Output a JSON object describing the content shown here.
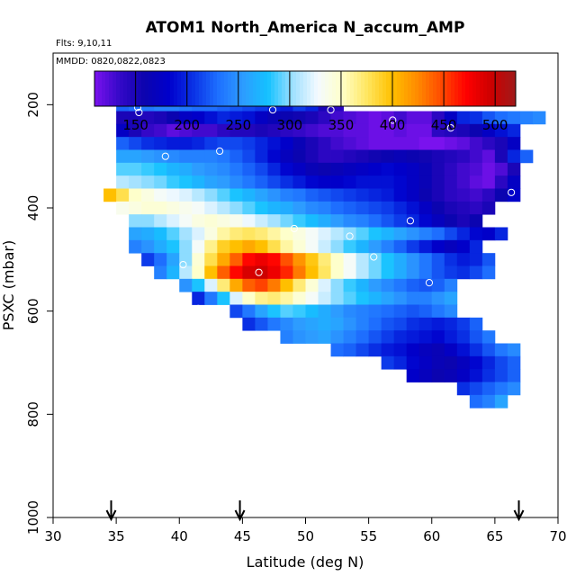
{
  "chart_data": {
    "type": "heatmap",
    "title": "ATOM1 North_America N_accum_AMP",
    "annotations": [
      "Flts: 9,10,11",
      "MMDD: 0820,0822,0823"
    ],
    "xlabel": "Latitude (deg N)",
    "ylabel": "PSXC (mbar)",
    "xlim": [
      30,
      70
    ],
    "ylim": [
      1000,
      100
    ],
    "y_reversed": true,
    "xticks": [
      30,
      35,
      40,
      45,
      50,
      55,
      60,
      65,
      70
    ],
    "yticks": [
      200,
      400,
      600,
      800,
      1000
    ],
    "grid": false,
    "legend": "colorbar top",
    "colorbar": {
      "min": 110,
      "max": 520,
      "ticks": [
        150,
        200,
        250,
        300,
        350,
        400,
        450,
        500
      ],
      "colors": [
        "#7a12ee",
        "#3508c8",
        "#0c04ae",
        "#0000cc",
        "#0a32e6",
        "#1e70ff",
        "#2d9cff",
        "#14c2ff",
        "#9ee0ff",
        "#f4faff",
        "#ffffc8",
        "#ffe660",
        "#ffc000",
        "#ff8c00",
        "#ff4a00",
        "#ff0000",
        "#cc0000",
        "#a01a1a"
      ]
    },
    "cell": {
      "dlat": 1,
      "dp": 25
    },
    "rows": [
      {
        "p": 200,
        "lat0": 35,
        "values": [
          225,
          230,
          235,
          240,
          240,
          235,
          230,
          230,
          225,
          220,
          215,
          210,
          200,
          195,
          210,
          200,
          150,
          140
        ]
      },
      {
        "p": 225,
        "lat0": 35,
        "values": [
          150,
          150,
          145,
          150,
          160,
          175,
          180,
          190,
          200,
          195,
          190,
          175,
          165,
          160,
          155,
          150,
          140,
          130,
          125,
          120,
          115,
          120,
          130,
          120,
          120,
          140,
          175,
          200,
          205,
          220,
          230,
          235,
          240,
          245
        ]
      },
      {
        "p": 250,
        "lat0": 35,
        "values": [
          175,
          150,
          135,
          130,
          120,
          125,
          130,
          130,
          140,
          145,
          145,
          150,
          145,
          140,
          135,
          130,
          125,
          125,
          120,
          120,
          115,
          115,
          120,
          115,
          115,
          140,
          145,
          150,
          160,
          175,
          190,
          200
        ]
      },
      {
        "p": 275,
        "lat0": 35,
        "values": [
          225,
          215,
          205,
          200,
          195,
          195,
          200,
          210,
          215,
          215,
          210,
          200,
          190,
          180,
          165,
          150,
          140,
          130,
          125,
          120,
          115,
          115,
          115,
          115,
          110,
          110,
          115,
          120,
          130,
          140,
          150,
          175
        ]
      },
      {
        "p": 300,
        "lat0": 35,
        "values": [
          260,
          260,
          255,
          250,
          245,
          240,
          240,
          240,
          235,
          225,
          215,
          200,
          185,
          170,
          160,
          150,
          140,
          140,
          145,
          150,
          155,
          160,
          165,
          160,
          155,
          150,
          145,
          140,
          130,
          120,
          150,
          200,
          225
        ]
      },
      {
        "p": 325,
        "lat0": 35,
        "values": [
          290,
          290,
          285,
          280,
          270,
          265,
          255,
          250,
          245,
          235,
          225,
          215,
          200,
          185,
          175,
          165,
          160,
          165,
          170,
          175,
          180,
          185,
          180,
          175,
          165,
          150,
          140,
          130,
          125,
          115,
          125,
          150
        ]
      },
      {
        "p": 350,
        "lat0": 35,
        "values": [
          310,
          305,
          300,
          295,
          285,
          280,
          270,
          260,
          255,
          245,
          235,
          225,
          215,
          205,
          195,
          185,
          180,
          180,
          185,
          190,
          190,
          190,
          185,
          175,
          165,
          150,
          140,
          130,
          120,
          115,
          140,
          175
        ]
      },
      {
        "p": 375,
        "lat0": 34,
        "values": [
          400,
          380,
          350,
          340,
          330,
          325,
          320,
          310,
          300,
          290,
          280,
          270,
          260,
          250,
          240,
          235,
          225,
          220,
          215,
          210,
          205,
          200,
          195,
          185,
          175,
          160,
          150,
          140,
          135,
          130,
          140,
          160,
          180
        ]
      },
      {
        "p": 400,
        "lat0": 35,
        "values": [
          335,
          340,
          345,
          345,
          340,
          335,
          330,
          320,
          310,
          300,
          290,
          280,
          270,
          265,
          255,
          245,
          240,
          230,
          225,
          220,
          215,
          210,
          200,
          190,
          175,
          160,
          150,
          145,
          140,
          150
        ]
      },
      {
        "p": 425,
        "lat0": 36,
        "values": [
          300,
          300,
          310,
          320,
          330,
          340,
          345,
          340,
          335,
          325,
          315,
          305,
          295,
          285,
          275,
          265,
          255,
          245,
          240,
          230,
          220,
          210,
          200,
          185,
          170,
          160,
          150,
          160
        ]
      },
      {
        "p": 450,
        "lat0": 36,
        "values": [
          260,
          265,
          275,
          290,
          305,
          320,
          340,
          360,
          370,
          375,
          370,
          360,
          350,
          340,
          330,
          320,
          310,
          300,
          290,
          280,
          270,
          260,
          250,
          240,
          230,
          215,
          200,
          185,
          180,
          200
        ]
      },
      {
        "p": 475,
        "lat0": 36,
        "values": [
          240,
          250,
          265,
          280,
          300,
          330,
          365,
          390,
          400,
          410,
          400,
          380,
          360,
          345,
          330,
          315,
          300,
          285,
          270,
          255,
          240,
          225,
          210,
          195,
          180,
          170,
          180,
          200
        ]
      },
      {
        "p": 500,
        "lat0": 37,
        "values": [
          210,
          230,
          260,
          300,
          345,
          380,
          410,
          440,
          470,
          480,
          470,
          445,
          420,
          395,
          370,
          350,
          330,
          310,
          295,
          280,
          265,
          250,
          235,
          220,
          205,
          195,
          200,
          220
        ]
      },
      {
        "p": 525,
        "lat0": 38,
        "values": [
          240,
          270,
          310,
          350,
          400,
          440,
          470,
          490,
          495,
          480,
          460,
          430,
          400,
          375,
          350,
          330,
          310,
          295,
          280,
          265,
          250,
          235,
          220,
          210,
          205,
          215,
          230
        ]
      },
      {
        "p": 550,
        "lat0": 40,
        "values": [
          250,
          280,
          320,
          370,
          410,
          440,
          450,
          430,
          400,
          370,
          345,
          320,
          300,
          285,
          270,
          255,
          245,
          235,
          225,
          220,
          225,
          240
        ]
      },
      {
        "p": 575,
        "lat0": 41,
        "values": [
          200,
          235,
          280,
          320,
          350,
          365,
          370,
          360,
          345,
          330,
          315,
          300,
          290,
          280,
          270,
          260,
          250,
          240,
          240,
          250,
          260
        ]
      },
      {
        "p": 600,
        "lat0": 44,
        "values": [
          215,
          235,
          260,
          280,
          290,
          285,
          275,
          265,
          255,
          245,
          240,
          235,
          230,
          225,
          220,
          225,
          235,
          245
        ]
      },
      {
        "p": 625,
        "lat0": 45,
        "values": [
          205,
          220,
          235,
          245,
          255,
          260,
          265,
          260,
          250,
          240,
          230,
          220,
          215,
          205,
          200,
          195,
          200,
          210,
          225
        ]
      },
      {
        "p": 650,
        "lat0": 48,
        "values": [
          240,
          250,
          255,
          260,
          250,
          240,
          230,
          220,
          210,
          200,
          195,
          190,
          185,
          195,
          205,
          220,
          235
        ]
      },
      {
        "p": 675,
        "lat0": 52,
        "values": [
          230,
          225,
          215,
          205,
          195,
          190,
          180,
          170,
          165,
          175,
          190,
          205,
          220,
          235,
          245
        ]
      },
      {
        "p": 700,
        "lat0": 56,
        "values": [
          210,
          200,
          185,
          175,
          165,
          160,
          170,
          185,
          200,
          215,
          225
        ]
      },
      {
        "p": 725,
        "lat0": 58,
        "values": [
          180,
          170,
          160,
          165,
          175,
          190,
          205,
          215,
          225
        ]
      },
      {
        "p": 750,
        "lat0": 62,
        "values": [
          205,
          215,
          225,
          235,
          245
        ]
      },
      {
        "p": 775,
        "lat0": 63,
        "values": [
          230,
          240,
          260
        ]
      }
    ],
    "points": [
      {
        "lat": 34.7,
        "p": 230
      },
      {
        "lat": 35.9,
        "p": 195
      },
      {
        "lat": 36.4,
        "p": 192
      },
      {
        "lat": 36.7,
        "p": 205
      },
      {
        "lat": 36.8,
        "p": 215
      },
      {
        "lat": 38.9,
        "p": 300
      },
      {
        "lat": 43.2,
        "p": 290
      },
      {
        "lat": 47.4,
        "p": 210
      },
      {
        "lat": 52.0,
        "p": 210
      },
      {
        "lat": 56.9,
        "p": 230
      },
      {
        "lat": 61.5,
        "p": 245
      },
      {
        "lat": 69.9,
        "p": 228
      },
      {
        "lat": 66.3,
        "p": 370
      },
      {
        "lat": 34.5,
        "p": 440
      },
      {
        "lat": 36.6,
        "p": 520
      },
      {
        "lat": 38.9,
        "p": 600
      },
      {
        "lat": 40.3,
        "p": 510
      },
      {
        "lat": 41.5,
        "p": 595
      },
      {
        "lat": 46.3,
        "p": 525
      },
      {
        "lat": 49.1,
        "p": 440
      },
      {
        "lat": 53.5,
        "p": 455
      },
      {
        "lat": 55.4,
        "p": 495
      },
      {
        "lat": 58.3,
        "p": 425
      },
      {
        "lat": 59.8,
        "p": 545
      },
      {
        "lat": 64.5,
        "p": 565
      },
      {
        "lat": 65.5,
        "p": 630
      },
      {
        "lat": 59.1,
        "p": 800
      }
    ],
    "arrows_lat": [
      34.6,
      44.8,
      66.9
    ]
  }
}
